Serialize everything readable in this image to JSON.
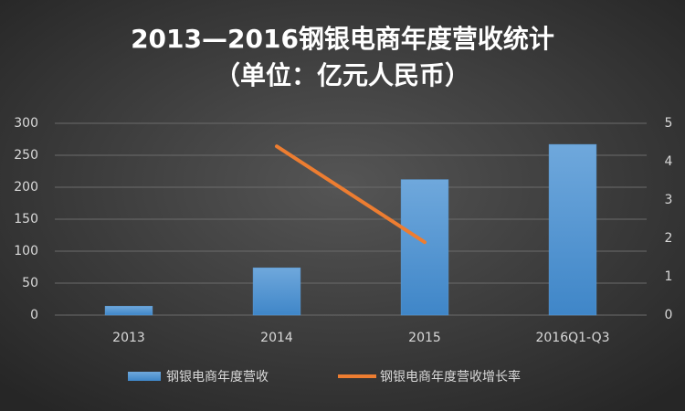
{
  "chart_data": {
    "type": "bar-line",
    "title": "2013—2016钢银电商年度营收统计",
    "subtitle": "（单位：亿元人民币）",
    "categories": [
      "2013",
      "2014",
      "2015",
      "2016Q1-Q3"
    ],
    "series": [
      {
        "name": "钢银电商年度营收",
        "type": "bar",
        "color": "#5b9bd5",
        "values": [
          14,
          74,
          212,
          267
        ]
      },
      {
        "name": "钢银电商年度营收增长率",
        "type": "line",
        "axis": "y2",
        "color": "#ed7d31",
        "values": [
          null,
          4.4,
          1.9,
          null
        ]
      }
    ],
    "ylim": [
      0,
      300
    ],
    "yticks": [
      0,
      50,
      100,
      150,
      200,
      250,
      300
    ],
    "y2lim": [
      0,
      5
    ],
    "y2ticks": [
      0,
      1,
      2,
      3,
      4,
      5
    ],
    "grid": true,
    "legend": "bottom"
  }
}
